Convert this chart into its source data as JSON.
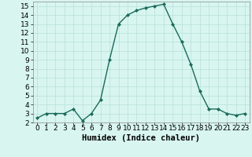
{
  "x": [
    0,
    1,
    2,
    3,
    4,
    5,
    6,
    7,
    8,
    9,
    10,
    11,
    12,
    13,
    14,
    15,
    16,
    17,
    18,
    19,
    20,
    21,
    22,
    23
  ],
  "y": [
    2.5,
    3.0,
    3.0,
    3.0,
    3.5,
    2.2,
    3.0,
    4.5,
    9.0,
    13.0,
    14.0,
    14.5,
    14.8,
    15.0,
    15.2,
    13.0,
    11.0,
    8.5,
    5.5,
    3.5,
    3.5,
    3.0,
    2.8,
    3.0
  ],
  "line_color": "#1a6b5a",
  "marker": "D",
  "marker_size": 2.0,
  "bg_color": "#d8f5f0",
  "grid_color": "#b8e0da",
  "xlabel": "Humidex (Indice chaleur)",
  "xlabel_fontsize": 7.5,
  "xlim": [
    -0.5,
    23.5
  ],
  "ylim": [
    2,
    15.5
  ],
  "yticks": [
    2,
    3,
    4,
    5,
    6,
    7,
    8,
    9,
    10,
    11,
    12,
    13,
    14,
    15
  ],
  "xticks": [
    0,
    1,
    2,
    3,
    4,
    5,
    6,
    7,
    8,
    9,
    10,
    11,
    12,
    13,
    14,
    15,
    16,
    17,
    18,
    19,
    20,
    21,
    22,
    23
  ],
  "tick_fontsize": 6.5,
  "linewidth": 1.0
}
